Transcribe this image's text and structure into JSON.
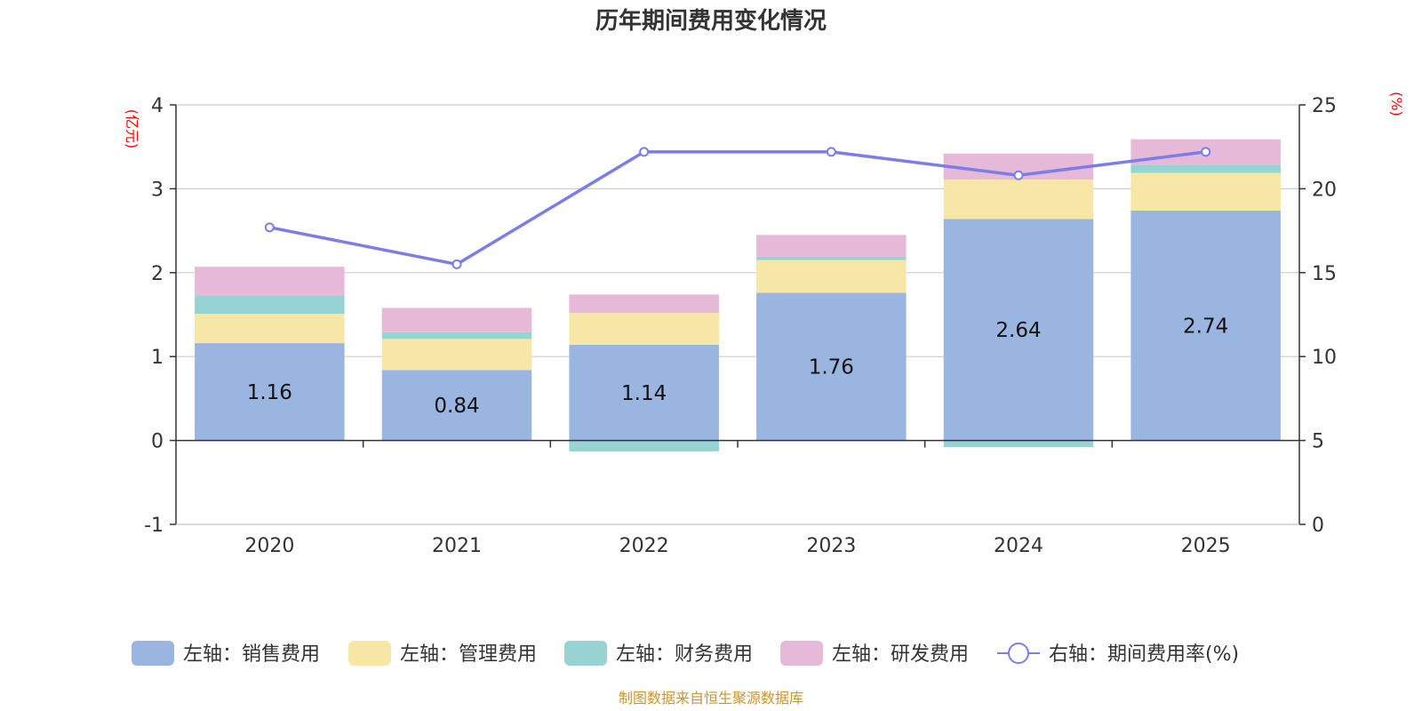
{
  "chart_data": {
    "type": "bar",
    "title": "历年期间费用变化情况",
    "categories": [
      "2020",
      "2021",
      "2022",
      "2023",
      "2024",
      "2025"
    ],
    "left_axis": {
      "unit": "(亿元)",
      "ylim": [
        -1,
        4
      ],
      "ticks": [
        -1,
        0,
        1,
        2,
        3,
        4
      ]
    },
    "right_axis": {
      "unit": "(%)",
      "ylim": [
        0,
        25
      ],
      "ticks": [
        0,
        5,
        10,
        15,
        20,
        25
      ]
    },
    "series": [
      {
        "name": "左轴：销售费用",
        "type": "bar",
        "stack": "cost",
        "axis": "left",
        "color": "#9ab5e0",
        "values": [
          1.16,
          0.84,
          1.14,
          1.76,
          2.64,
          2.74
        ],
        "show_labels": true
      },
      {
        "name": "左轴：管理费用",
        "type": "bar",
        "stack": "cost",
        "axis": "left",
        "color": "#f7e7a6",
        "values": [
          0.35,
          0.37,
          0.38,
          0.39,
          0.47,
          0.45
        ]
      },
      {
        "name": "左轴：财务费用",
        "type": "bar",
        "stack": "cost",
        "axis": "left",
        "color": "#97d3d3",
        "values": [
          0.22,
          0.08,
          -0.13,
          0.04,
          -0.08,
          0.09
        ]
      },
      {
        "name": "左轴：研发费用",
        "type": "bar",
        "stack": "cost",
        "axis": "left",
        "color": "#e6b9d9",
        "values": [
          0.34,
          0.29,
          0.22,
          0.26,
          0.31,
          0.31
        ]
      },
      {
        "name": "右轴：期间费用率(%)",
        "type": "line",
        "axis": "right",
        "color": "#7b7de8",
        "values": [
          17.7,
          15.5,
          22.2,
          22.2,
          20.8,
          22.2
        ]
      }
    ]
  },
  "footer": {
    "source": "制图数据来自恒生聚源数据库"
  }
}
